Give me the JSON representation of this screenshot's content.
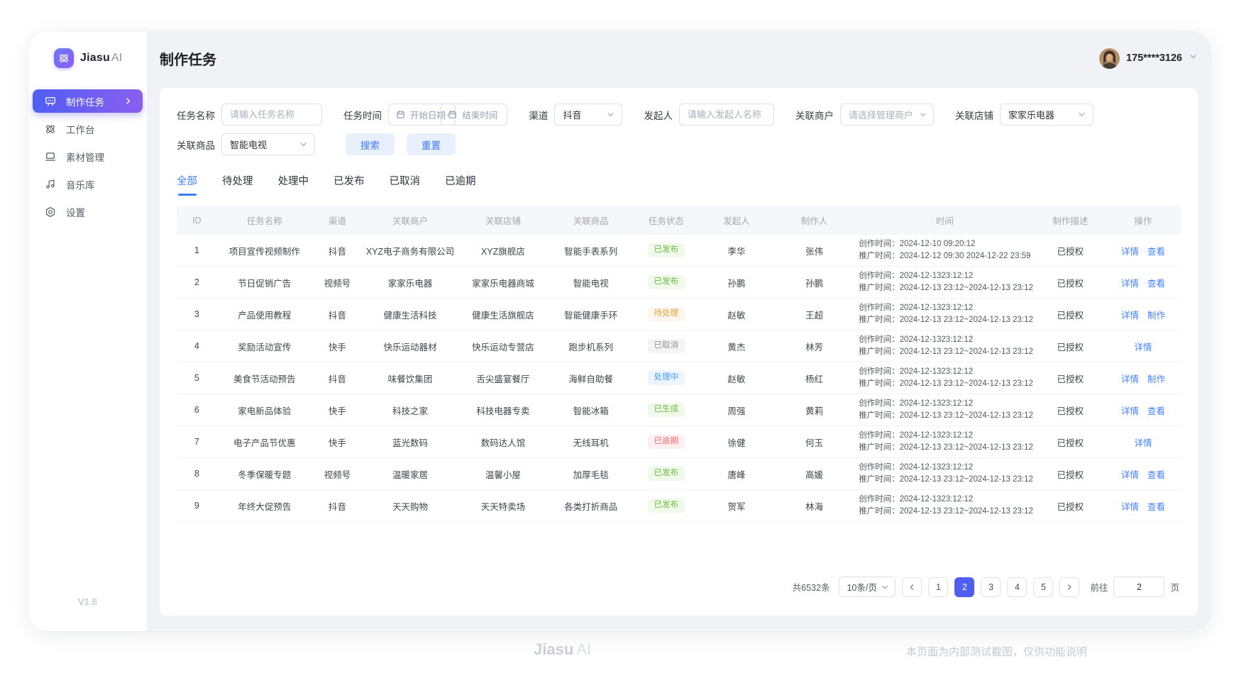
{
  "sidebar": {
    "logo": {
      "brand": "Jiasu",
      "suffix": "AI"
    },
    "items": [
      {
        "label": "制作任务",
        "active": true
      },
      {
        "label": "工作台"
      },
      {
        "label": "素材管理"
      },
      {
        "label": "音乐库"
      },
      {
        "label": "设置"
      }
    ],
    "version": "V1.8"
  },
  "header": {
    "title": "制作任务",
    "user": {
      "name": "175****3126"
    }
  },
  "filters": {
    "task_name": {
      "label": "任务名称",
      "placeholder": "请输入任务名称"
    },
    "task_time": {
      "label": "任务时间",
      "start_placeholder": "开始日期",
      "separator": "-",
      "end_placeholder": "结束时间"
    },
    "channel": {
      "label": "渠道",
      "value": "抖音"
    },
    "initiator": {
      "label": "发起人",
      "placeholder": "请输入发起人名称"
    },
    "merchant": {
      "label": "关联商户",
      "placeholder": "请选择管理商户"
    },
    "shop": {
      "label": "关联店铺",
      "value": "家家乐电器"
    },
    "product": {
      "label": "关联商品",
      "value": "智能电视"
    },
    "search_label": "搜索",
    "reset_label": "重置"
  },
  "tabs": [
    {
      "label": "全部",
      "active": true
    },
    {
      "label": "待处理"
    },
    {
      "label": "处理中"
    },
    {
      "label": "已发布"
    },
    {
      "label": "已取消"
    },
    {
      "label": "已逾期"
    }
  ],
  "table": {
    "columns": [
      "ID",
      "任务名称",
      "渠道",
      "关联商户",
      "关联店铺",
      "关联商品",
      "任务状态",
      "发起人",
      "制作人",
      "时间",
      "制作描述",
      "操作"
    ],
    "time_labels": {
      "create": "创作时间：",
      "promo": "推广时间："
    },
    "rows": [
      {
        "id": "1",
        "name": "项目宣传视频制作",
        "channel": "抖音",
        "merchant": "XYZ电子商务有限公司",
        "shop": "XYZ旗舰店",
        "product": "智能手表系列",
        "status": "已发布",
        "status_type": "success",
        "initiator": "李华",
        "maker": "张伟",
        "create_time": "2024-12-10 09:20:12",
        "promo_time": "2024-12-12 09:30 2024-12-22 23:59",
        "desc": "已授权",
        "actions": [
          "详情",
          "查看"
        ]
      },
      {
        "id": "2",
        "name": "节日促销广告",
        "channel": "视频号",
        "merchant": "家家乐电器",
        "shop": "家家乐电器商城",
        "product": "智能电视",
        "status": "已发布",
        "status_type": "success",
        "initiator": "孙鹏",
        "maker": "孙鹏",
        "create_time": "2024-12-1323:12:12",
        "promo_time": "2024-12-13 23:12~2024-12-13 23:12",
        "desc": "已授权",
        "actions": [
          "详情",
          "查看"
        ]
      },
      {
        "id": "3",
        "name": "产品使用教程",
        "channel": "抖音",
        "merchant": "健康生活科技",
        "shop": "健康生活旗舰店",
        "product": "智能健康手环",
        "status": "待处理",
        "status_type": "warning",
        "initiator": "赵敏",
        "maker": "王超",
        "create_time": "2024-12-1323:12:12",
        "promo_time": "2024-12-13 23:12~2024-12-13 23:12",
        "desc": "已授权",
        "actions": [
          "详情",
          "制作"
        ]
      },
      {
        "id": "4",
        "name": "奖励活动宣传",
        "channel": "快手",
        "merchant": "快乐运动器材",
        "shop": "快乐运动专营店",
        "product": "跑步机系列",
        "status": "已取消",
        "status_type": "info",
        "initiator": "黄杰",
        "maker": "林芳",
        "create_time": "2024-12-1323:12:12",
        "promo_time": "2024-12-13 23:12~2024-12-13 23:12",
        "desc": "已授权",
        "actions": [
          "详情"
        ]
      },
      {
        "id": "5",
        "name": "美食节活动预告",
        "channel": "抖音",
        "merchant": "味餐饮集团",
        "shop": "舌尖盛宴餐厅",
        "product": "海鲜自助餐",
        "status": "处理中",
        "status_type": "primary",
        "initiator": "赵敏",
        "maker": "杨红",
        "create_time": "2024-12-1323:12:12",
        "promo_time": "2024-12-13 23:12~2024-12-13 23:12",
        "desc": "已授权",
        "actions": [
          "详情",
          "制作"
        ]
      },
      {
        "id": "6",
        "name": "家电新品体验",
        "channel": "快手",
        "merchant": "科技之家",
        "shop": "科技电器专卖",
        "product": "智能冰箱",
        "status": "已生成",
        "status_type": "success",
        "initiator": "周强",
        "maker": "黄莉",
        "create_time": "2024-12-1323:12:12",
        "promo_time": "2024-12-13 23:12~2024-12-13 23:12",
        "desc": "已授权",
        "actions": [
          "详情",
          "查看"
        ]
      },
      {
        "id": "7",
        "name": "电子产品节优惠",
        "channel": "快手",
        "merchant": "蓝光数码",
        "shop": "数码达人馆",
        "product": "无线耳机",
        "status": "已逾期",
        "status_type": "danger",
        "initiator": "徐健",
        "maker": "何玉",
        "create_time": "2024-12-1323:12:12",
        "promo_time": "2024-12-13 23:12~2024-12-13 23:12",
        "desc": "已授权",
        "actions": [
          "详情"
        ]
      },
      {
        "id": "8",
        "name": "冬季保暖专题",
        "channel": "视频号",
        "merchant": "温暖家居",
        "shop": "温馨小屋",
        "product": "加厚毛毯",
        "status": "已发布",
        "status_type": "success",
        "initiator": "唐峰",
        "maker": "高媛",
        "create_time": "2024-12-1323:12:12",
        "promo_time": "2024-12-13 23:12~2024-12-13 23:12",
        "desc": "已授权",
        "actions": [
          "详情",
          "查看"
        ]
      },
      {
        "id": "9",
        "name": "年终大促预告",
        "channel": "抖音",
        "merchant": "天天购物",
        "shop": "天天特卖场",
        "product": "各类打折商品",
        "status": "已发布",
        "status_type": "success",
        "initiator": "贺军",
        "maker": "林海",
        "create_time": "2024-12-1323:12:12",
        "promo_time": "2024-12-13 23:12~2024-12-13 23:12",
        "desc": "已授权",
        "actions": [
          "详情",
          "查看"
        ]
      }
    ]
  },
  "pagination": {
    "total": "共6532条",
    "page_size": "10条/页",
    "pages": [
      "1",
      "2",
      "3",
      "4",
      "5"
    ],
    "active_page": "2",
    "goto_label": "前往",
    "goto_value": "2",
    "unit_label": "页"
  },
  "footer": {
    "brand": "Jiasu",
    "brand_suffix": "AI",
    "note": "本页面为内部测试截图，仅供功能说明"
  },
  "colors": {
    "accent_blue": "#3b7cfa",
    "active_gradient": [
      "#4f5ef3",
      "#8a5ff0"
    ],
    "status_success": "#67c23a",
    "status_warning": "#e6a23c",
    "status_info": "#909399",
    "status_primary": "#409eff",
    "status_danger": "#f56c6c"
  }
}
